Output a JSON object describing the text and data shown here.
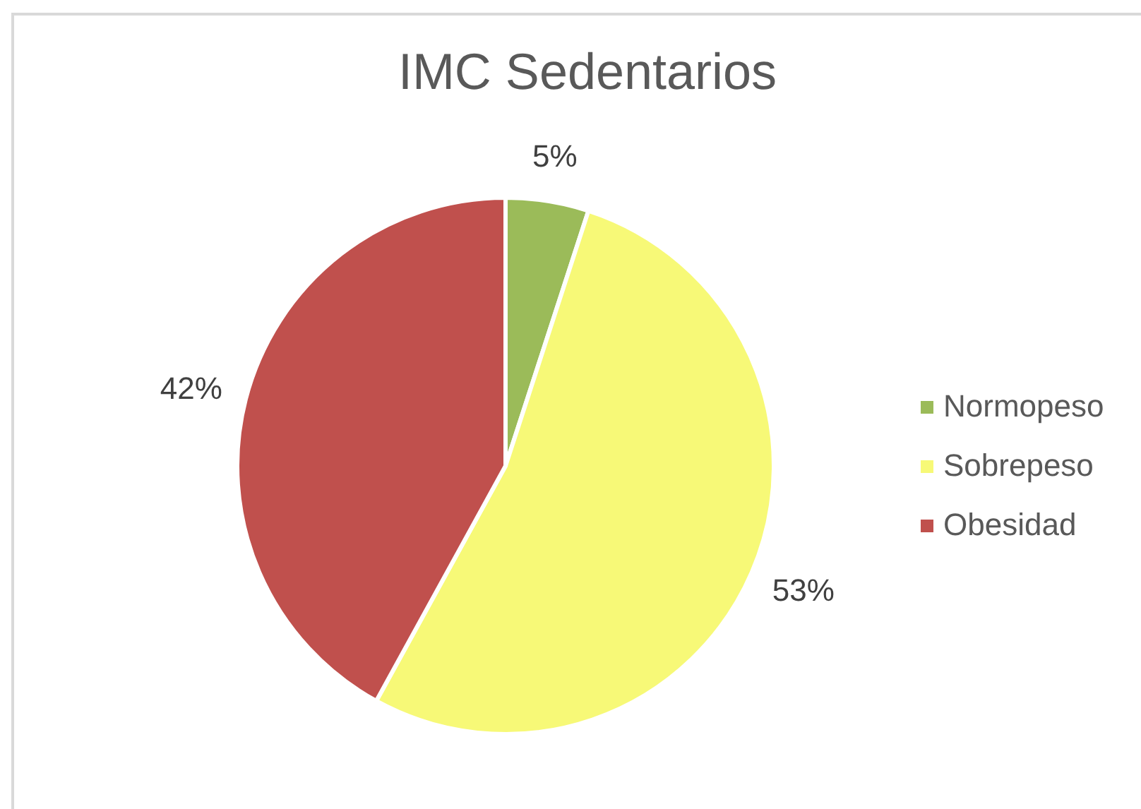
{
  "chart_data": {
    "type": "pie",
    "title": "IMC Sedentarios",
    "categories": [
      "Normopeso",
      "Sobrepeso",
      "Obesidad"
    ],
    "values": [
      5,
      53,
      42
    ],
    "colors": [
      "#9bbb59",
      "#f7f977",
      "#c0504d"
    ],
    "value_labels": [
      "5%",
      "53%",
      "42%"
    ],
    "legend": "right"
  }
}
